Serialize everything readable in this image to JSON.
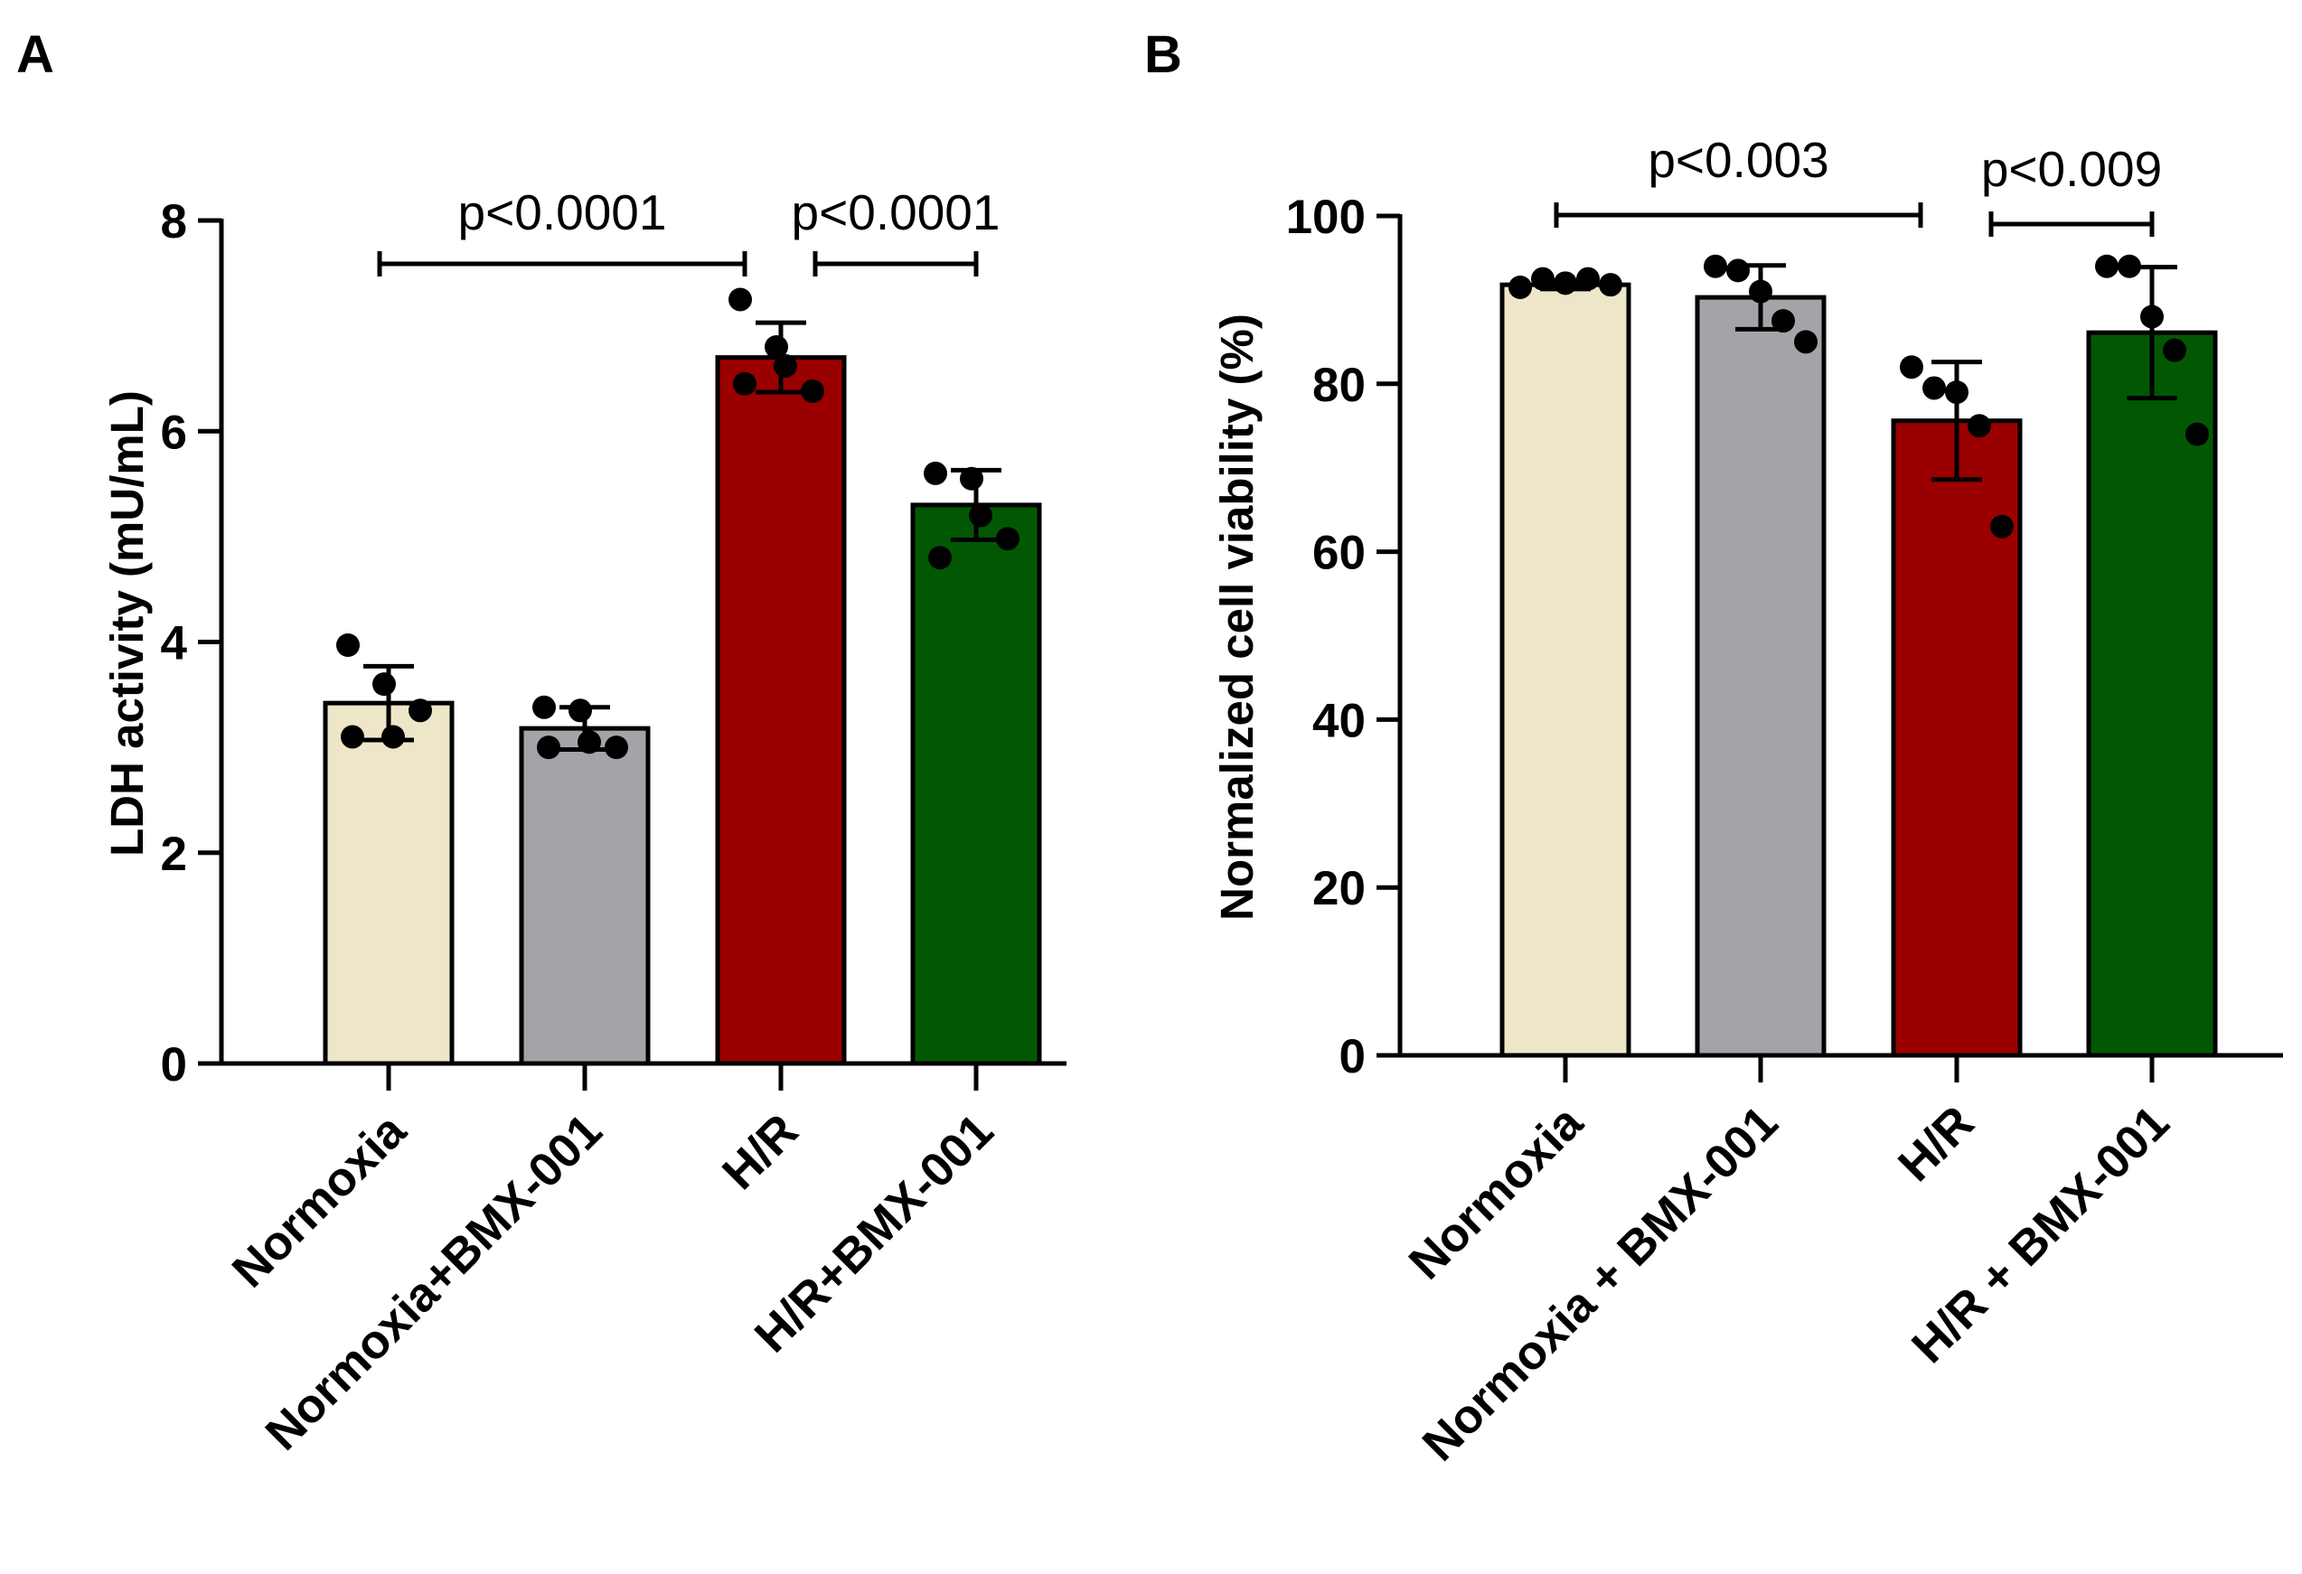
{
  "chart_data": [
    {
      "panel": "A",
      "type": "bar",
      "ylabel": "LDH activity (mU/mL)",
      "ylim": [
        0,
        8
      ],
      "yticks": [
        0,
        2,
        4,
        6,
        8
      ],
      "categories": [
        "Normoxia",
        "Normoxia+BMX-001",
        "H/R",
        "H/R+BMX-001"
      ],
      "colors": [
        "#ede6c8",
        "#a3a3a8",
        "#9a0000",
        "#025802"
      ],
      "values": [
        3.42,
        3.18,
        6.7,
        5.3
      ],
      "sd": [
        0.35,
        0.2,
        0.33,
        0.33
      ],
      "points": [
        [
          3.97,
          3.6,
          3.1,
          3.35,
          3.1
        ],
        [
          3.38,
          3.35,
          3.05,
          3.0,
          3.0
        ],
        [
          7.25,
          6.8,
          6.62,
          6.38,
          6.45
        ],
        [
          5.6,
          5.55,
          5.2,
          4.98,
          4.8
        ]
      ],
      "comparisons": [
        {
          "from": 0,
          "to": 2,
          "label": "p<0.0001"
        },
        {
          "from": 2,
          "to": 3,
          "label": "p<0.0001"
        }
      ]
    },
    {
      "panel": "B",
      "type": "bar",
      "ylabel": "Normalized cell viability (%)",
      "ylim": [
        0,
        100
      ],
      "yticks": [
        0,
        20,
        40,
        60,
        80,
        100
      ],
      "categories": [
        "Normoxia",
        "Normoxia + BMX-001",
        "H/R",
        "H/R + BMX-001"
      ],
      "colors": [
        "#ede6c8",
        "#a3a3a8",
        "#9a0000",
        "#025802"
      ],
      "values": [
        91.8,
        90.3,
        75.6,
        86.1
      ],
      "sd": [
        0.5,
        3.8,
        7.0,
        7.8
      ],
      "points": [
        [
          91.5,
          92.5,
          92.0,
          92.5,
          91.8
        ],
        [
          94.0,
          93.5,
          91.0,
          87.5,
          85.0
        ],
        [
          82.0,
          79.5,
          79.0,
          75.0,
          63.0
        ],
        [
          94.0,
          94.0,
          88.0,
          84.0,
          74.0
        ]
      ],
      "comparisons": [
        {
          "from": 0,
          "to": 2,
          "label": "p<0.003"
        },
        {
          "from": 2,
          "to": 3,
          "label": "p<0.009"
        }
      ]
    }
  ]
}
